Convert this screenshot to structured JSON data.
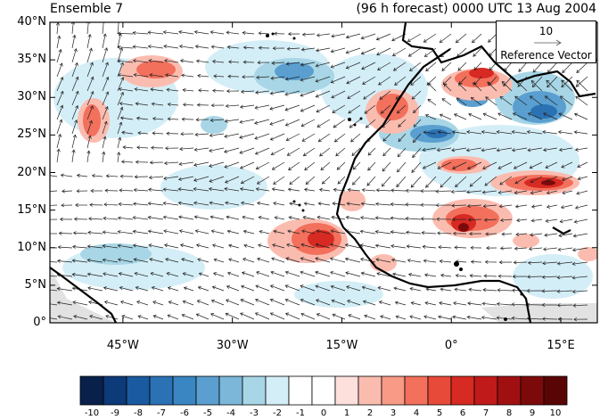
{
  "title_left": "Ensemble 7",
  "title_right": "(96 h forecast) 0000 UTC 13 Aug 2004",
  "lat_labels": [
    {
      "value": 40,
      "text": "40°N"
    },
    {
      "value": 35,
      "text": "35°N"
    },
    {
      "value": 30,
      "text": "30°N"
    },
    {
      "value": 25,
      "text": "25°N"
    },
    {
      "value": 20,
      "text": "20°N"
    },
    {
      "value": 15,
      "text": "15°N"
    },
    {
      "value": 10,
      "text": "10°N"
    },
    {
      "value": 5,
      "text": "5°N"
    },
    {
      "value": 0,
      "text": "0°"
    }
  ],
  "lon_labels": [
    {
      "value": -45,
      "text": "45°W"
    },
    {
      "value": -30,
      "text": "30°W"
    },
    {
      "value": -15,
      "text": "15°W"
    },
    {
      "value": 0,
      "text": "0°"
    },
    {
      "value": 15,
      "text": "15°E"
    }
  ],
  "reference_vector": {
    "value": "10",
    "label": "Reference Vector"
  },
  "colorbar": {
    "labels": [
      "-10",
      "-9",
      "-8",
      "-7",
      "-6",
      "-5",
      "-4",
      "-3",
      "-2",
      "-1",
      "0",
      "1",
      "2",
      "3",
      "4",
      "5",
      "6",
      "7",
      "8",
      "9",
      "10"
    ],
    "colors": [
      "#08204a",
      "#0d3a78",
      "#1a5aa0",
      "#2a72b4",
      "#3a86c2",
      "#5a9fcf",
      "#7cb7da",
      "#a8d6e6",
      "#d4eef7",
      "#ffffff",
      "#ffffff",
      "#fde0dc",
      "#fbbcb0",
      "#f89a86",
      "#f2705c",
      "#e84a3a",
      "#d72a22",
      "#c01a1a",
      "#a01010",
      "#7c0a0a",
      "#5a0505"
    ]
  }
}
